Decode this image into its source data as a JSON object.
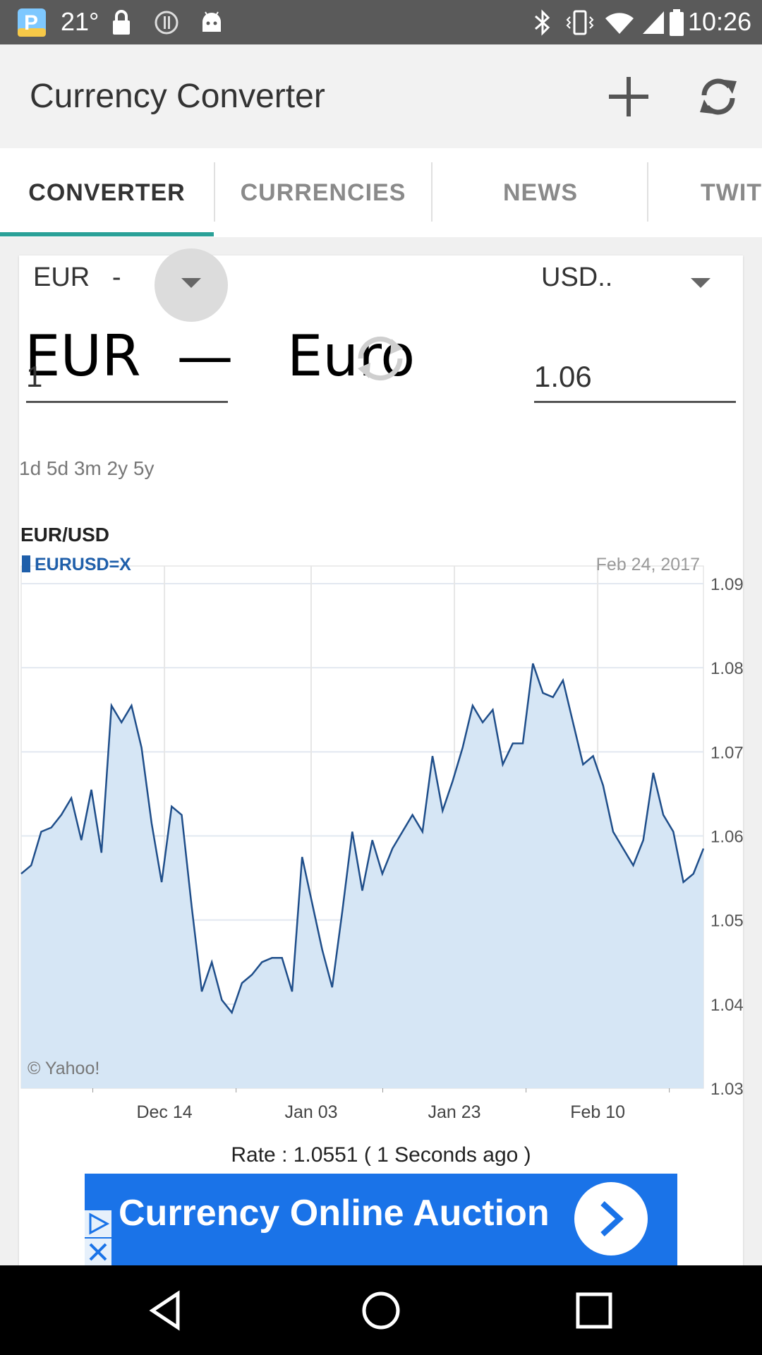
{
  "status_bar": {
    "temperature": "21°",
    "time": "10:26",
    "icons": [
      "app-p-icon",
      "lock-icon",
      "alert-icon",
      "android-icon",
      "bluetooth-icon",
      "vibrate-icon",
      "wifi-icon",
      "signal-icon",
      "battery-icon"
    ]
  },
  "app_bar": {
    "title": "Currency Converter",
    "actions": [
      "add-icon",
      "refresh-icon"
    ]
  },
  "tabs": [
    {
      "label": "CONVERTER",
      "active": true
    },
    {
      "label": "CURRENCIES",
      "active": false
    },
    {
      "label": "NEWS",
      "active": false
    },
    {
      "label": "TWIT",
      "active": false
    }
  ],
  "converter": {
    "from_select": "EUR   -",
    "to_select": "USD..",
    "from_amount": "1",
    "to_amount": "1.06",
    "overlay_text": "EUR  —   Euro"
  },
  "ranges": "1d 5d 3m 2y 5y",
  "chart_data": {
    "type": "area",
    "title": "EUR/USD",
    "legend": [
      "EURUSD=X"
    ],
    "date_label": "Feb 24, 2017",
    "credit": "© Yahoo!",
    "x_ticks": [
      "Dec 14",
      "Jan 03",
      "Jan 23",
      "Feb 10"
    ],
    "y_ticks": [
      "1.09",
      "1.08",
      "1.07",
      "1.06",
      "1.05",
      "1.04",
      "1.03"
    ],
    "ylim": [
      1.03,
      1.09
    ],
    "grid": true,
    "series": [
      {
        "values": [
          1.0555,
          1.0565,
          1.0605,
          1.061,
          1.0625,
          1.0645,
          1.0595,
          1.0655,
          1.058,
          1.0755,
          1.0735,
          1.0755,
          1.0705,
          1.0615,
          1.0545,
          1.0635,
          1.0625,
          1.0515,
          1.0415,
          1.045,
          1.0405,
          1.039,
          1.0425,
          1.0435,
          1.045,
          1.0455,
          1.0455,
          1.0415,
          1.0575,
          1.052,
          1.0465,
          1.042,
          1.051,
          1.0605,
          1.0535,
          1.0595,
          1.0555,
          1.0585,
          1.0605,
          1.0625,
          1.0605,
          1.0695,
          1.063,
          1.0665,
          1.0705,
          1.0755,
          1.0735,
          1.075,
          1.0685,
          1.071,
          1.071,
          1.0805,
          1.077,
          1.0765,
          1.0785,
          1.0735,
          1.0685,
          1.0695,
          1.066,
          1.0605,
          1.0585,
          1.0565,
          1.0595,
          1.0675,
          1.0625,
          1.0605,
          1.0545,
          1.0555,
          1.0585
        ]
      }
    ]
  },
  "rate_text": "Rate : 1.0551 ( 1 Seconds ago )",
  "ad": {
    "text": "Currency Online Auction"
  },
  "nav_bar": [
    "back-icon",
    "home-icon",
    "recents-icon"
  ]
}
